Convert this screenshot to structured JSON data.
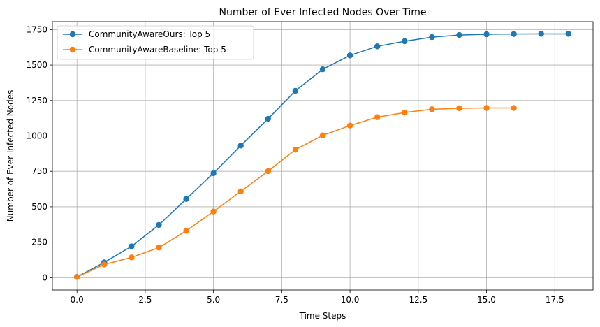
{
  "chart_data": {
    "type": "line",
    "title": "Number of Ever Infected Nodes Over Time",
    "xlabel": "Time Steps",
    "ylabel": "Number of Ever Infected Nodes",
    "xlim": [
      -0.9,
      18.9
    ],
    "ylim": [
      -87,
      1806
    ],
    "xticks": [
      0,
      2.5,
      5,
      7.5,
      10,
      12.5,
      15,
      17.5
    ],
    "xtick_labels": [
      "0.0",
      "2.5",
      "5.0",
      "7.5",
      "10.0",
      "12.5",
      "15.0",
      "17.5"
    ],
    "yticks": [
      0,
      250,
      500,
      750,
      1000,
      1250,
      1500,
      1750
    ],
    "ytick_labels": [
      "0",
      "250",
      "500",
      "750",
      "1000",
      "1250",
      "1500",
      "1750"
    ],
    "grid": true,
    "legend_position": "top-left",
    "series": [
      {
        "name": "CommunityAwareOurs: Top 5",
        "color": "#1f77b4",
        "marker": "circle",
        "x": [
          0,
          1,
          2,
          3,
          4,
          5,
          6,
          7,
          8,
          9,
          10,
          11,
          12,
          13,
          14,
          15,
          16,
          17,
          18
        ],
        "y": [
          5,
          108,
          221,
          372,
          555,
          737,
          932,
          1121,
          1318,
          1470,
          1568,
          1632,
          1668,
          1697,
          1712,
          1717,
          1719,
          1720,
          1720
        ]
      },
      {
        "name": "CommunityAwareBaseline: Top 5",
        "color": "#ff7f0e",
        "marker": "circle",
        "x": [
          0,
          1,
          2,
          3,
          4,
          5,
          6,
          7,
          8,
          9,
          10,
          11,
          12,
          13,
          14,
          15,
          16
        ],
        "y": [
          5,
          93,
          143,
          212,
          330,
          467,
          609,
          751,
          903,
          1004,
          1073,
          1132,
          1165,
          1188,
          1195,
          1197,
          1197
        ]
      }
    ]
  }
}
